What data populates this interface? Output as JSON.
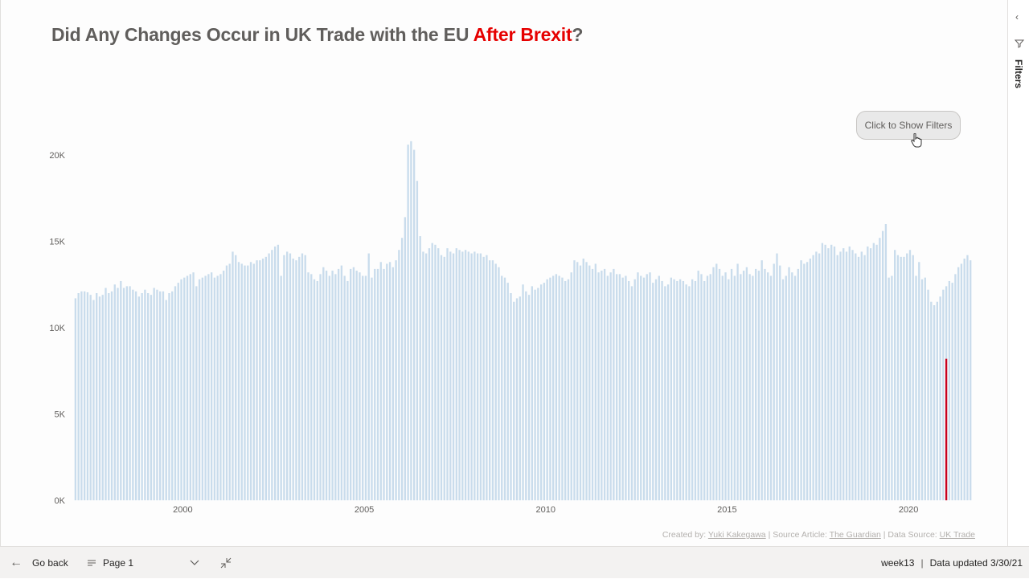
{
  "title": {
    "part1": "Did Any Changes Occur in UK Trade with the EU ",
    "highlight": "After Brexit",
    "part2": "?"
  },
  "colors": {
    "bar": "#c9dcec",
    "highlight": "#c8001e",
    "title_accent": "#e60000"
  },
  "filter_button": {
    "label": "Click to Show Filters"
  },
  "credits": {
    "created_by_label": "Created by: ",
    "author": "Yuki Kakegawa",
    "source_article_label": " | Source Article: ",
    "source_article": "The Guardian",
    "data_source_label": " | Data Source: ",
    "data_source": "UK Trade"
  },
  "filters_pane": {
    "label": "Filters",
    "collapse_icon": "chevron-left-icon",
    "funnel_icon": "funnel-icon"
  },
  "bottom_bar": {
    "go_back": "Go back",
    "page": "Page 1",
    "tab_name": "week13",
    "data_updated": "Data updated 3/30/21"
  },
  "chart_data": {
    "type": "bar",
    "title": "",
    "xlabel": "",
    "ylabel": "",
    "ylim": [
      0,
      22000
    ],
    "y_ticks": [
      0,
      5000,
      10000,
      15000,
      20000
    ],
    "y_tick_labels": [
      "0K",
      "5K",
      "10K",
      "15K",
      "20K"
    ],
    "x_ticks": [
      2000,
      2005,
      2010,
      2015,
      2020
    ],
    "x_tick_labels": [
      "2000",
      "2005",
      "2010",
      "2015",
      "2020"
    ],
    "x_start": "1997-01",
    "x_end": "2021-01",
    "grid": false,
    "legend": "none",
    "series": [
      {
        "values_monthly": [
          11700,
          12000,
          12100,
          12100,
          12050,
          11900,
          11600,
          12000,
          11800,
          11900,
          12300,
          12000,
          12100,
          12500,
          12300,
          12700,
          12300,
          12400,
          12400,
          12200,
          12100,
          11800,
          12000,
          12200,
          12000,
          11900,
          12300,
          12200,
          12100,
          12100,
          11600,
          12000,
          12100,
          12400,
          12600,
          12800,
          12900,
          13000,
          13100,
          13200,
          12400,
          12800,
          12900,
          13000,
          13100,
          13200,
          12900,
          13000,
          13100,
          13300,
          13600,
          13700,
          14400,
          14200,
          13800,
          13700,
          13600,
          13600,
          13800,
          13700,
          13900,
          13900,
          14000,
          14100,
          14300,
          14500,
          14700,
          14800,
          13000,
          14200,
          14400,
          14300,
          14000,
          13900,
          14100,
          14300,
          14200,
          13200,
          13100,
          12800,
          12700,
          13100,
          13500,
          13300,
          13000,
          13300,
          13100,
          13400,
          13600,
          13000,
          12700,
          13400,
          13500,
          13300,
          13200,
          13000,
          13000,
          14300,
          12900,
          13400,
          13400,
          13800,
          13400,
          13700,
          13800,
          13500,
          13900,
          14500,
          15200,
          16400,
          20600,
          20800,
          20300,
          18500,
          15300,
          14400,
          14300,
          14600,
          14900,
          14800,
          14600,
          14200,
          14100,
          14600,
          14400,
          14300,
          14600,
          14500,
          14400,
          14500,
          14400,
          14300,
          14400,
          14300,
          14300,
          14100,
          14200,
          13900,
          13900,
          13700,
          13500,
          13000,
          12900,
          12600,
          12000,
          11500,
          11700,
          11800,
          12500,
          12100,
          11900,
          12400,
          12200,
          12300,
          12500,
          12600,
          12800,
          12900,
          13000,
          13100,
          13000,
          12900,
          12700,
          12800,
          13200,
          13900,
          13800,
          13600,
          14000,
          13800,
          13600,
          13400,
          13700,
          13200,
          13300,
          13400,
          13000,
          13200,
          13400,
          13100,
          13100,
          12900,
          13000,
          12700,
          12400,
          12800,
          13200,
          13000,
          12900,
          13100,
          13200,
          12600,
          12800,
          13000,
          12700,
          12400,
          12500,
          12900,
          12800,
          12700,
          12800,
          12700,
          12500,
          12400,
          12800,
          12700,
          13300,
          13100,
          12700,
          13000,
          13100,
          13500,
          13700,
          13400,
          13000,
          13200,
          12800,
          13400,
          13000,
          13700,
          13100,
          13300,
          13500,
          13100,
          13000,
          13400,
          13300,
          13900,
          13400,
          13200,
          13000,
          13700,
          14300,
          13600,
          12800,
          13000,
          13500,
          13200,
          13000,
          13400,
          13900,
          13700,
          13800,
          14000,
          14200,
          14400,
          14300,
          14900,
          14800,
          14600,
          14800,
          14700,
          14200,
          14400,
          14600,
          14400,
          14700,
          14500,
          14300,
          14100,
          14400,
          14200,
          14700,
          14600,
          14900,
          14800,
          15200,
          15600,
          16000,
          12900,
          13000,
          14500,
          14200,
          14100,
          14100,
          14300,
          14500,
          14200,
          13000,
          13800,
          12800,
          12900,
          12200,
          11500,
          11300,
          11500,
          11800,
          12200,
          12400,
          12700,
          12600,
          13100,
          13500,
          13700,
          14000,
          14200,
          13900
        ]
      },
      {
        "name": "",
        "highlight_month": "2021-01",
        "value": 8200
      }
    ]
  }
}
